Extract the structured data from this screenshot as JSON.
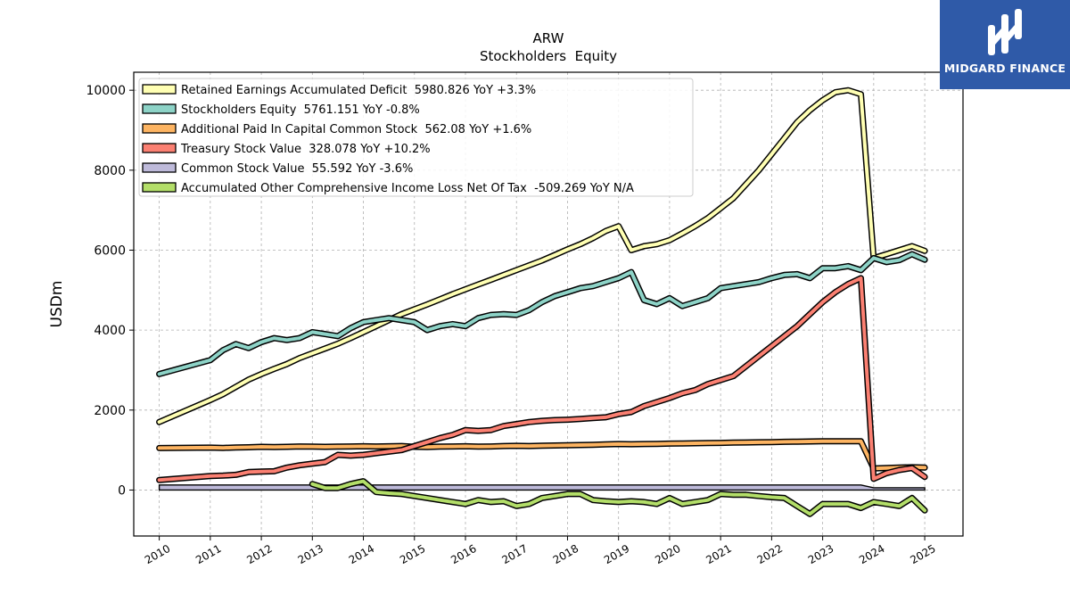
{
  "brand": {
    "name": "MIDGARD FINANCE",
    "color": "#2f5aa8"
  },
  "chart_data": {
    "type": "line",
    "title": "ARW",
    "subtitle": "Stockholders  Equity",
    "xlabel": "",
    "ylabel": "USDm",
    "xlim": [
      2009.5,
      2025.75
    ],
    "ylim": [
      -1150,
      10450
    ],
    "xticks": [
      2010,
      2011,
      2012,
      2013,
      2014,
      2015,
      2016,
      2017,
      2018,
      2019,
      2020,
      2021,
      2022,
      2023,
      2024,
      2025
    ],
    "yticks": [
      0,
      2000,
      4000,
      6000,
      8000,
      10000
    ],
    "grid": true,
    "legend_position": "top-left",
    "series": [
      {
        "name": "Retained Earnings Accumulated Deficit  5980.826 YoY +3.3%",
        "color": "#ffffb3",
        "x": [
          2010.0,
          2011.0,
          2011.25,
          2011.5,
          2011.75,
          2012.0,
          2012.25,
          2012.5,
          2012.75,
          2013.0,
          2013.25,
          2013.5,
          2013.75,
          2014.0,
          2014.25,
          2014.5,
          2014.75,
          2015.0,
          2015.25,
          2015.5,
          2015.75,
          2016.0,
          2016.25,
          2016.5,
          2016.75,
          2017.0,
          2017.25,
          2017.5,
          2017.75,
          2018.0,
          2018.25,
          2018.5,
          2018.75,
          2019.0,
          2019.25,
          2019.5,
          2019.75,
          2020.0,
          2020.25,
          2020.5,
          2020.75,
          2021.0,
          2021.25,
          2021.5,
          2021.75,
          2022.0,
          2022.25,
          2022.5,
          2022.75,
          2023.0,
          2023.25,
          2023.5,
          2023.75,
          2024.0,
          2024.25,
          2024.5,
          2024.75,
          2025.0
        ],
        "values": [
          1700,
          2250,
          2400,
          2580,
          2760,
          2900,
          3030,
          3150,
          3300,
          3420,
          3540,
          3660,
          3800,
          3950,
          4100,
          4250,
          4400,
          4520,
          4640,
          4770,
          4900,
          5020,
          5140,
          5260,
          5380,
          5500,
          5620,
          5740,
          5880,
          6020,
          6150,
          6300,
          6480,
          6600,
          6000,
          6100,
          6150,
          6250,
          6420,
          6600,
          6800,
          7050,
          7300,
          7650,
          8000,
          8400,
          8800,
          9200,
          9500,
          9750,
          9950,
          10000,
          9900,
          5800,
          5900,
          6000,
          6100,
          5981
        ]
      },
      {
        "name": "Stockholders Equity  5761.151 YoY -0.8%",
        "color": "#8dd3c7",
        "x": [
          2010.0,
          2011.0,
          2011.25,
          2011.5,
          2011.75,
          2012.0,
          2012.25,
          2012.5,
          2012.75,
          2013.0,
          2013.25,
          2013.5,
          2013.75,
          2014.0,
          2014.25,
          2014.5,
          2014.75,
          2015.0,
          2015.25,
          2015.5,
          2015.75,
          2016.0,
          2016.25,
          2016.5,
          2016.75,
          2017.0,
          2017.25,
          2017.5,
          2017.75,
          2018.0,
          2018.25,
          2018.5,
          2018.75,
          2019.0,
          2019.25,
          2019.5,
          2019.75,
          2020.0,
          2020.25,
          2020.5,
          2020.75,
          2021.0,
          2021.25,
          2021.5,
          2021.75,
          2022.0,
          2022.25,
          2022.5,
          2022.75,
          2023.0,
          2023.25,
          2023.5,
          2023.75,
          2024.0,
          2024.25,
          2024.5,
          2024.75,
          2025.0
        ],
        "values": [
          2900,
          3250,
          3500,
          3650,
          3550,
          3700,
          3800,
          3750,
          3800,
          3950,
          3900,
          3850,
          4050,
          4200,
          4250,
          4300,
          4250,
          4200,
          4000,
          4100,
          4150,
          4100,
          4300,
          4380,
          4400,
          4380,
          4500,
          4700,
          4850,
          4950,
          5050,
          5100,
          5200,
          5300,
          5450,
          4750,
          4650,
          4800,
          4600,
          4700,
          4800,
          5050,
          5100,
          5150,
          5200,
          5300,
          5380,
          5400,
          5300,
          5550,
          5550,
          5600,
          5500,
          5800,
          5700,
          5750,
          5900,
          5761
        ]
      },
      {
        "name": "Additional Paid In Capital Common Stock  562.08 YoY +1.6%",
        "color": "#fdb462",
        "x": [
          2010.0,
          2011.0,
          2011.25,
          2011.5,
          2011.75,
          2012.0,
          2012.25,
          2012.5,
          2012.75,
          2013.0,
          2013.25,
          2013.5,
          2013.75,
          2014.0,
          2014.25,
          2014.5,
          2014.75,
          2015.0,
          2015.25,
          2015.5,
          2015.75,
          2016.0,
          2016.25,
          2016.5,
          2016.75,
          2017.0,
          2017.25,
          2017.5,
          2017.75,
          2018.0,
          2018.25,
          2018.5,
          2018.75,
          2019.0,
          2019.25,
          2019.5,
          2019.75,
          2020.0,
          2020.25,
          2020.5,
          2020.75,
          2021.0,
          2021.25,
          2021.5,
          2021.75,
          2022.0,
          2022.25,
          2022.5,
          2022.75,
          2023.0,
          2023.25,
          2023.5,
          2023.75,
          2024.0,
          2024.25,
          2024.5,
          2024.75,
          2025.0
        ],
        "values": [
          1050,
          1060,
          1055,
          1065,
          1070,
          1080,
          1075,
          1080,
          1090,
          1085,
          1080,
          1085,
          1090,
          1095,
          1090,
          1095,
          1100,
          1080,
          1075,
          1085,
          1090,
          1095,
          1085,
          1090,
          1100,
          1105,
          1100,
          1110,
          1115,
          1120,
          1125,
          1130,
          1140,
          1150,
          1145,
          1150,
          1155,
          1160,
          1165,
          1170,
          1175,
          1180,
          1185,
          1190,
          1195,
          1200,
          1205,
          1210,
          1215,
          1220,
          1220,
          1220,
          1220,
          540,
          550,
          560,
          570,
          562
        ]
      },
      {
        "name": "Treasury Stock Value  328.078 YoY +10.2%",
        "color": "#fb8072",
        "x": [
          2010.0,
          2011.0,
          2011.25,
          2011.5,
          2011.75,
          2012.0,
          2012.25,
          2012.5,
          2012.75,
          2013.0,
          2013.25,
          2013.5,
          2013.75,
          2014.0,
          2014.25,
          2014.5,
          2014.75,
          2015.0,
          2015.25,
          2015.5,
          2015.75,
          2016.0,
          2016.25,
          2016.5,
          2016.75,
          2017.0,
          2017.25,
          2017.5,
          2017.75,
          2018.0,
          2018.25,
          2018.5,
          2018.75,
          2019.0,
          2019.25,
          2019.5,
          2019.75,
          2020.0,
          2020.25,
          2020.5,
          2020.75,
          2021.0,
          2021.25,
          2021.5,
          2021.75,
          2022.0,
          2022.25,
          2022.5,
          2022.75,
          2023.0,
          2023.25,
          2023.5,
          2023.75,
          2024.0,
          2024.25,
          2024.5,
          2024.75,
          2025.0
        ],
        "values": [
          250,
          350,
          360,
          380,
          450,
          460,
          470,
          560,
          620,
          660,
          700,
          880,
          860,
          880,
          920,
          960,
          1000,
          1100,
          1200,
          1300,
          1380,
          1500,
          1480,
          1500,
          1600,
          1650,
          1700,
          1730,
          1750,
          1760,
          1780,
          1800,
          1820,
          1900,
          1950,
          2100,
          2200,
          2300,
          2420,
          2500,
          2650,
          2750,
          2850,
          3100,
          3350,
          3600,
          3850,
          4100,
          4400,
          4700,
          4950,
          5150,
          5300,
          280,
          420,
          500,
          550,
          328
        ]
      },
      {
        "name": "Common Stock Value  55.592 YoY -3.6%",
        "color": "#bebada",
        "x": [
          2010.0,
          2023.75,
          2024.0,
          2025.0
        ],
        "values": [
          125,
          125,
          56,
          56
        ]
      },
      {
        "name": "Accumulated Other Comprehensive Income Loss Net Of Tax  -509.269 YoY N/A",
        "color": "#b3de69",
        "x": [
          2013.0,
          2013.25,
          2013.5,
          2013.75,
          2014.0,
          2014.25,
          2014.5,
          2014.75,
          2015.0,
          2015.25,
          2015.5,
          2015.75,
          2016.0,
          2016.25,
          2016.5,
          2016.75,
          2017.0,
          2017.25,
          2017.5,
          2017.75,
          2018.0,
          2018.25,
          2018.5,
          2018.75,
          2019.0,
          2019.25,
          2019.5,
          2019.75,
          2020.0,
          2020.25,
          2020.5,
          2020.75,
          2021.0,
          2021.25,
          2021.5,
          2021.75,
          2022.0,
          2022.25,
          2022.5,
          2022.75,
          2023.0,
          2023.25,
          2023.5,
          2023.75,
          2024.0,
          2024.25,
          2024.5,
          2024.75,
          2025.0
        ],
        "values": [
          150,
          50,
          50,
          150,
          220,
          -50,
          -80,
          -100,
          -150,
          -200,
          -250,
          -300,
          -350,
          -250,
          -300,
          -280,
          -400,
          -350,
          -200,
          -150,
          -100,
          -100,
          -250,
          -280,
          -300,
          -280,
          -300,
          -350,
          -200,
          -350,
          -300,
          -250,
          -100,
          -120,
          -120,
          -150,
          -180,
          -200,
          -400,
          -600,
          -350,
          -350,
          -350,
          -450,
          -300,
          -350,
          -400,
          -200,
          -509
        ]
      }
    ]
  }
}
